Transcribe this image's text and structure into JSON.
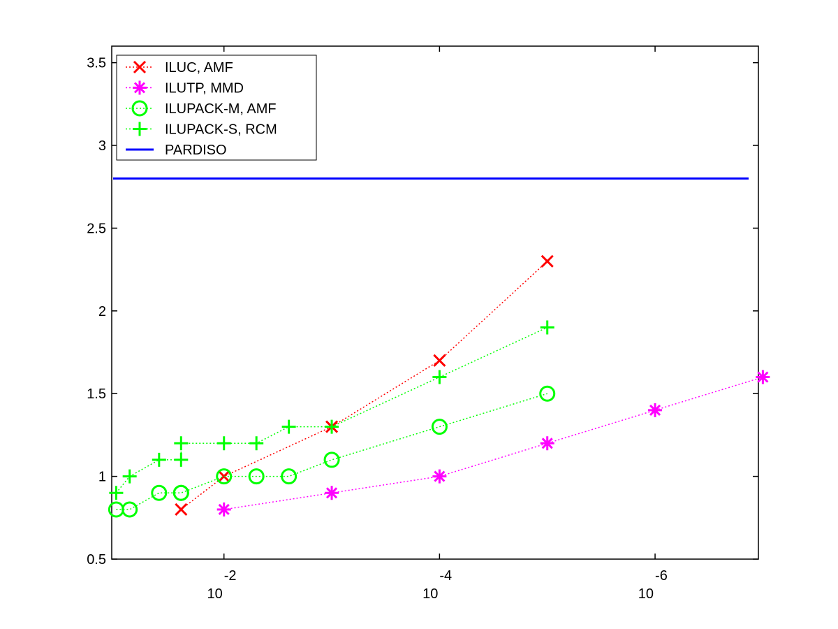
{
  "chart_data": {
    "type": "line",
    "xscale": "log",
    "xdirection": "reversed",
    "xlim": [
      0.11,
      1.1e-07
    ],
    "ylim": [
      0.5,
      3.6
    ],
    "grid": false,
    "legend_position": "top-left",
    "title": "",
    "xlabel": "",
    "ylabel": "",
    "yticks": [
      {
        "value": 0.5,
        "label": "0.5"
      },
      {
        "value": 1,
        "label": "1"
      },
      {
        "value": 1.5,
        "label": "1.5"
      },
      {
        "value": 2,
        "label": "2"
      },
      {
        "value": 2.5,
        "label": "2.5"
      },
      {
        "value": 3,
        "label": "3"
      },
      {
        "value": 3.5,
        "label": "3.5"
      }
    ],
    "xticks": [
      {
        "value": 0.01,
        "base": "10",
        "exponent": "-2"
      },
      {
        "value": 0.0001,
        "base": "10",
        "exponent": "-4"
      },
      {
        "value": 1e-06,
        "base": "10",
        "exponent": "-6"
      }
    ],
    "series": [
      {
        "name": "ILUC, AMF",
        "color": "#ff0000",
        "marker": "x",
        "linestyle": "dotted",
        "points": [
          [
            0.025,
            0.8
          ],
          [
            0.01,
            1.0
          ],
          [
            0.001,
            1.3
          ],
          [
            0.0001,
            1.7
          ],
          [
            1e-05,
            2.3
          ]
        ]
      },
      {
        "name": "ILUTP, MMD",
        "color": "#ff00ff",
        "marker": "star",
        "linestyle": "dotted",
        "points": [
          [
            0.01,
            0.8
          ],
          [
            0.001,
            0.9
          ],
          [
            0.0001,
            1.0
          ],
          [
            1e-05,
            1.2
          ],
          [
            1e-06,
            1.4
          ],
          [
            1e-07,
            1.6
          ]
        ]
      },
      {
        "name": "ILUPACK-M, AMF",
        "color": "#00ff00",
        "marker": "circle",
        "linestyle": "dotted",
        "points": [
          [
            0.1,
            0.8
          ],
          [
            0.075,
            0.8
          ],
          [
            0.04,
            0.9
          ],
          [
            0.025,
            0.9
          ],
          [
            0.025,
            0.9
          ],
          [
            0.01,
            1.0
          ],
          [
            0.005,
            1.0
          ],
          [
            0.0025,
            1.0
          ],
          [
            0.001,
            1.1
          ],
          [
            0.0001,
            1.3
          ],
          [
            1e-05,
            1.5
          ]
        ]
      },
      {
        "name": "ILUPACK-S, RCM",
        "color": "#00ff00",
        "marker": "plus",
        "linestyle": "dotted",
        "points": [
          [
            0.1,
            0.9
          ],
          [
            0.075,
            1.0
          ],
          [
            0.04,
            1.1
          ],
          [
            0.025,
            1.1
          ],
          [
            0.025,
            1.2
          ],
          [
            0.01,
            1.2
          ],
          [
            0.005,
            1.2
          ],
          [
            0.0025,
            1.3
          ],
          [
            0.001,
            1.3
          ],
          [
            0.0001,
            1.6
          ],
          [
            1e-05,
            1.9
          ]
        ]
      },
      {
        "name": "PARDISO",
        "color": "#0000ff",
        "marker": "none",
        "linestyle": "solid",
        "constant": 2.8
      }
    ]
  }
}
